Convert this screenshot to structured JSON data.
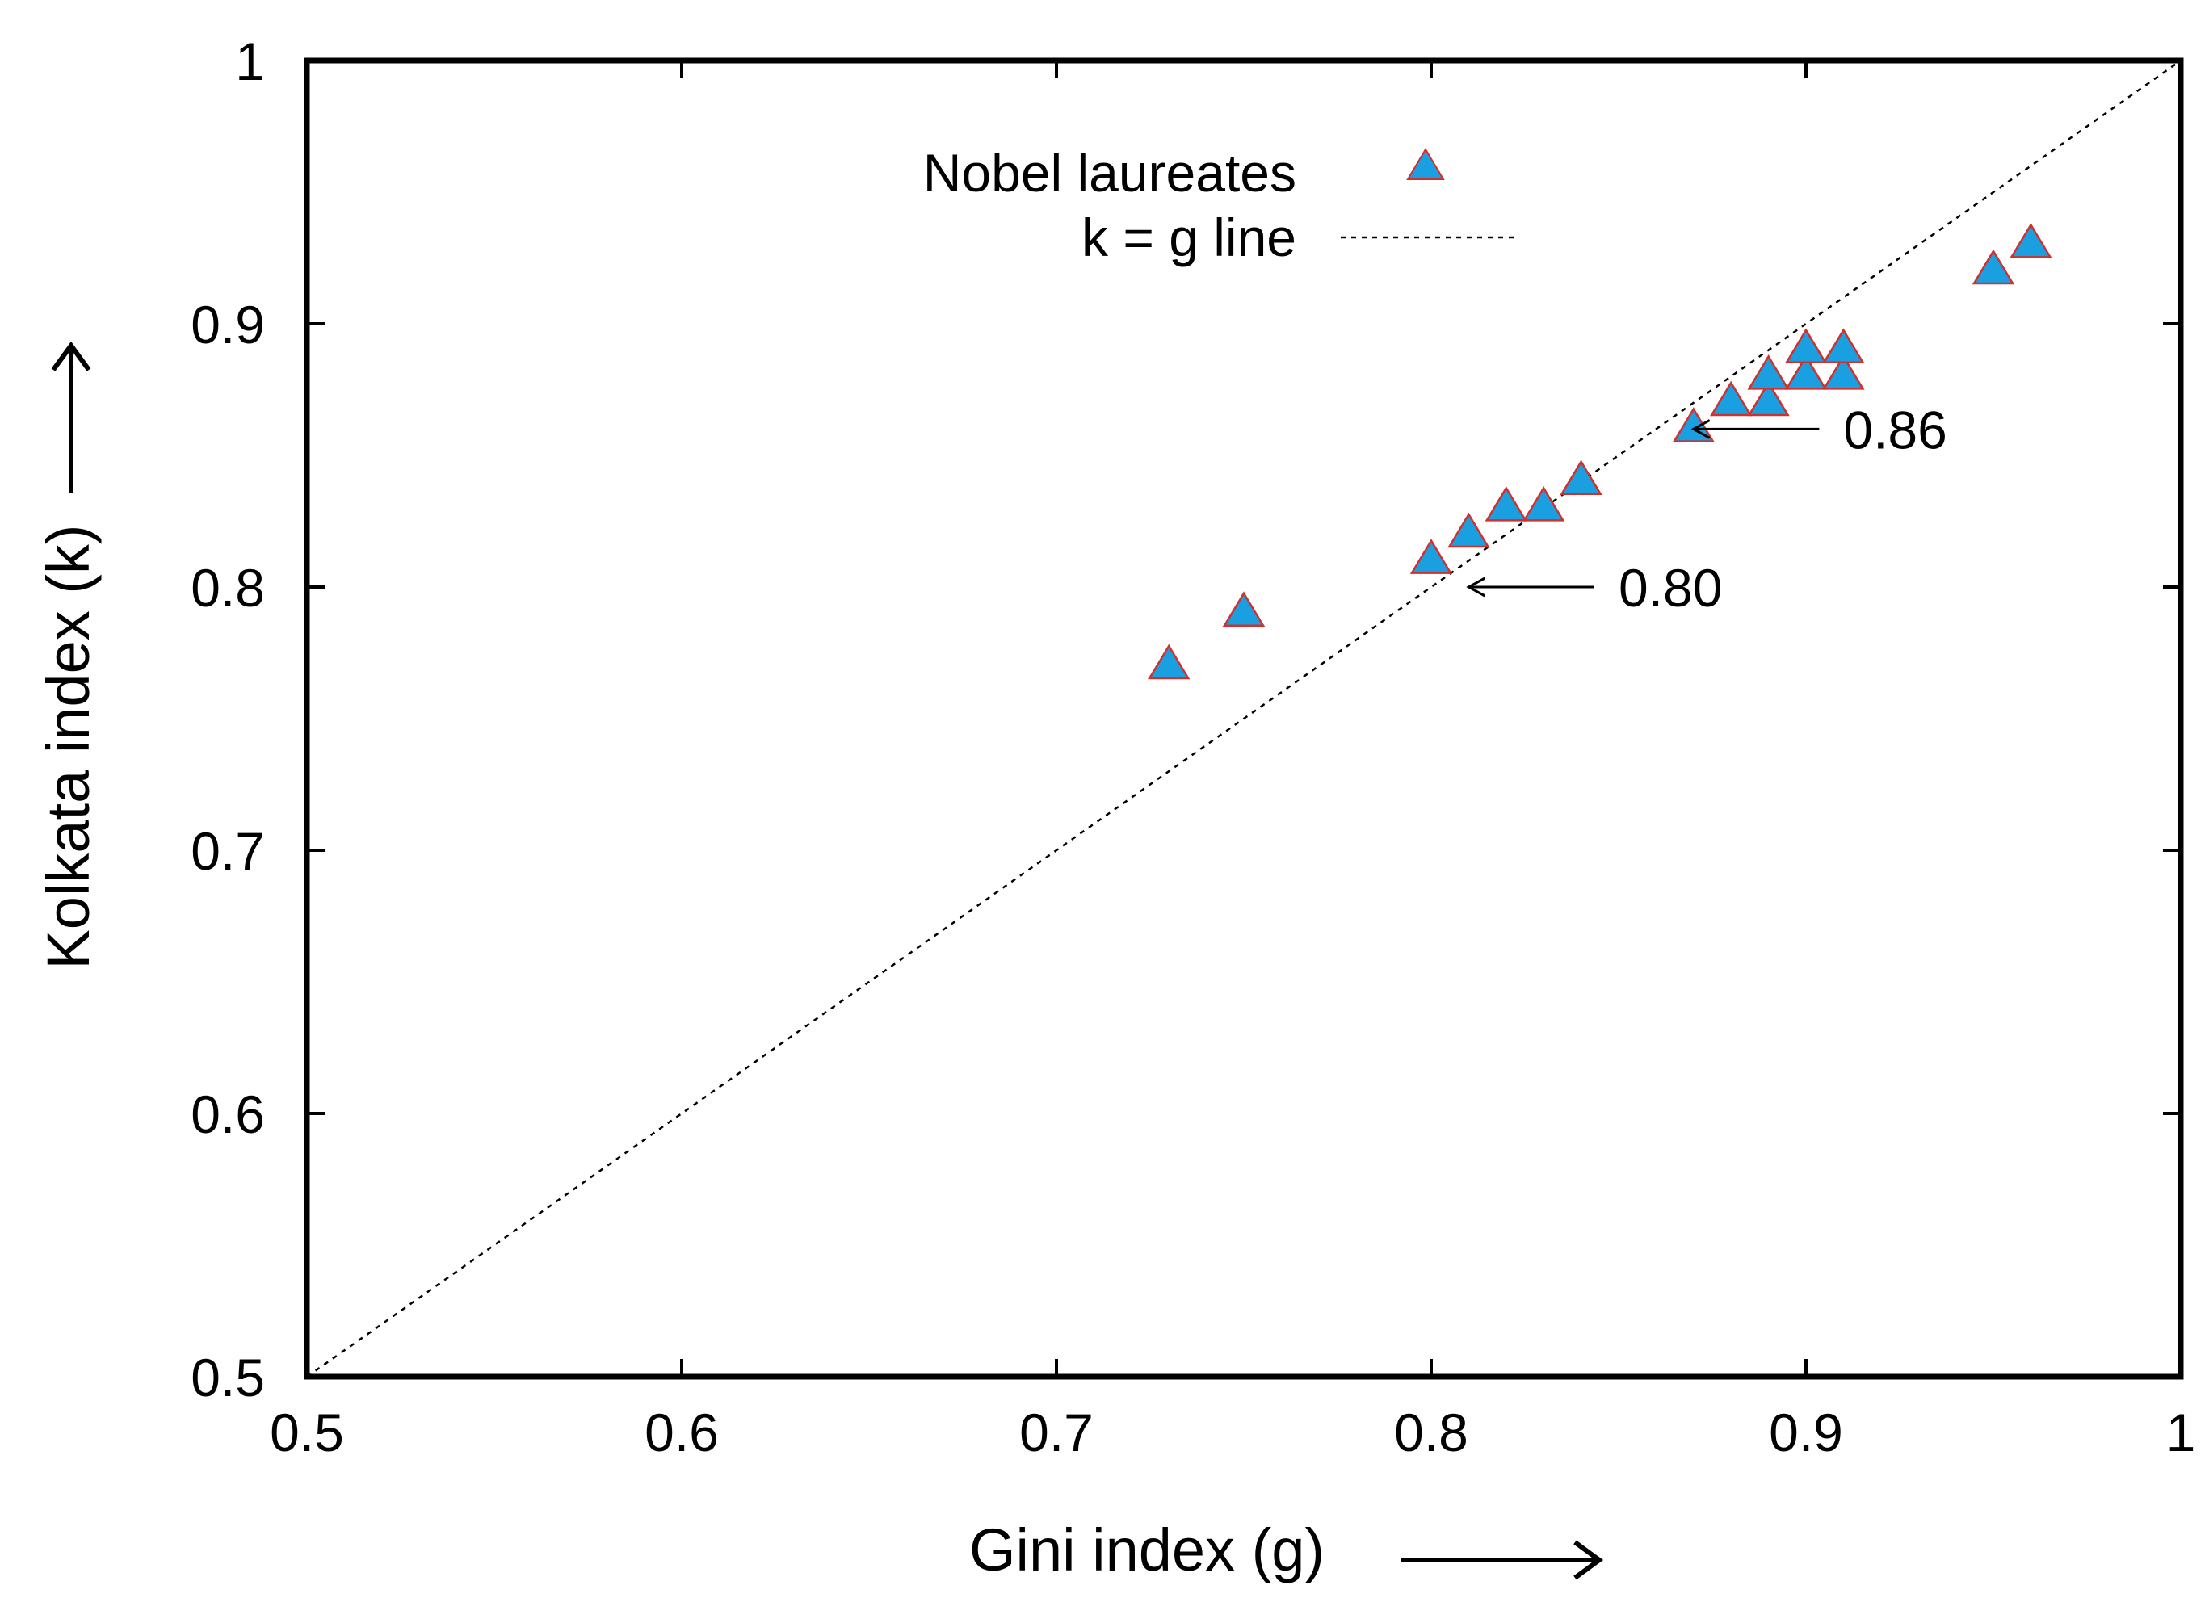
{
  "chart_data": {
    "type": "scatter",
    "xlabel": "Gini index (g)",
    "ylabel": "Kolkata index (k)",
    "xlim": [
      0.5,
      1
    ],
    "ylim": [
      0.5,
      1
    ],
    "xticks": [
      0.5,
      0.6,
      0.7,
      0.8,
      0.9,
      1
    ],
    "yticks": [
      0.5,
      0.6,
      0.7,
      0.8,
      0.9,
      1
    ],
    "xtick_labels": [
      "0.5",
      "0.6",
      "0.7",
      "0.8",
      "0.9",
      "1"
    ],
    "ytick_labels": [
      "0.5",
      "0.6",
      "0.7",
      "0.8",
      "0.9",
      "1"
    ],
    "legend_position": "top-center",
    "series": [
      {
        "name": "Nobel laureates",
        "marker": "triangle",
        "color": "#1a9fe0",
        "edge_color": "#d0312d",
        "points": [
          {
            "x": 0.73,
            "y": 0.77
          },
          {
            "x": 0.75,
            "y": 0.79
          },
          {
            "x": 0.8,
            "y": 0.81
          },
          {
            "x": 0.81,
            "y": 0.82
          },
          {
            "x": 0.82,
            "y": 0.83
          },
          {
            "x": 0.83,
            "y": 0.83
          },
          {
            "x": 0.84,
            "y": 0.84
          },
          {
            "x": 0.87,
            "y": 0.86
          },
          {
            "x": 0.88,
            "y": 0.87
          },
          {
            "x": 0.89,
            "y": 0.87
          },
          {
            "x": 0.89,
            "y": 0.88
          },
          {
            "x": 0.9,
            "y": 0.88
          },
          {
            "x": 0.9,
            "y": 0.89
          },
          {
            "x": 0.91,
            "y": 0.88
          },
          {
            "x": 0.91,
            "y": 0.89
          },
          {
            "x": 0.95,
            "y": 0.92
          },
          {
            "x": 0.96,
            "y": 0.93
          }
        ]
      },
      {
        "name": "k = g line",
        "style": "dotted",
        "color": "#000000",
        "x": [
          0.5,
          1
        ],
        "y": [
          0.5,
          1
        ]
      }
    ],
    "annotations": [
      {
        "label": "0.86",
        "arrow_to": {
          "x": 0.87,
          "y": 0.86
        },
        "text_at": {
          "x": 0.91,
          "y": 0.86
        }
      },
      {
        "label": "0.80",
        "arrow_to": {
          "x": 0.81,
          "y": 0.8
        },
        "text_at": {
          "x": 0.85,
          "y": 0.8
        }
      }
    ]
  }
}
